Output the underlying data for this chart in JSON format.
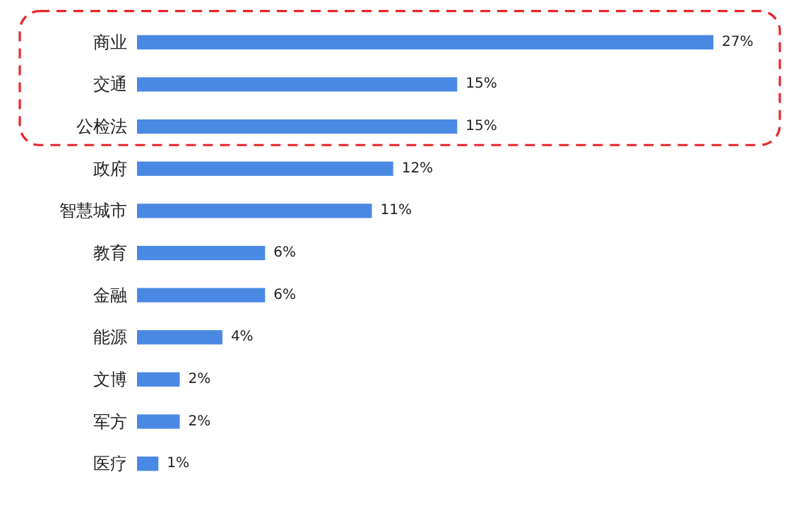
{
  "chart_data": {
    "type": "bar",
    "orientation": "horizontal",
    "categories": [
      "商业",
      "交通",
      "公检法",
      "政府",
      "智慧城市",
      "教育",
      "金融",
      "能源",
      "文博",
      "军方",
      "医疗"
    ],
    "values": [
      27,
      15,
      15,
      12,
      11,
      6,
      6,
      4,
      2,
      2,
      1
    ],
    "value_labels": [
      "27%",
      "15%",
      "15%",
      "12%",
      "11%",
      "6%",
      "6%",
      "4%",
      "2%",
      "2%",
      "1%"
    ],
    "color": "#4a89e3",
    "tick_labels": "y"
  }
}
